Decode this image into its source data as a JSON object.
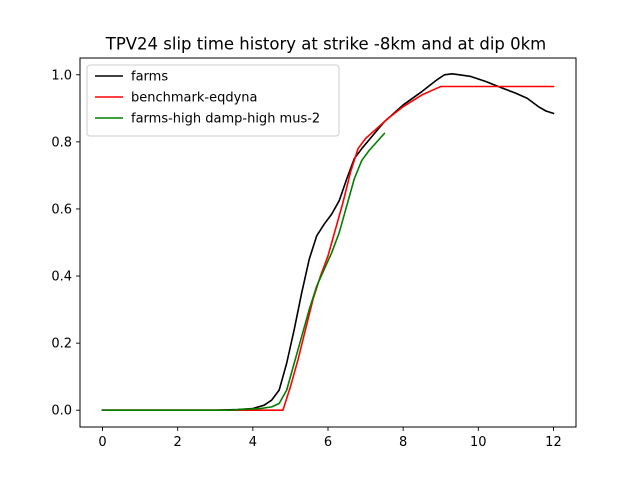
{
  "chart_data": {
    "type": "line",
    "title": "TPV24 slip time history at strike -8km and at dip 0km",
    "xlabel": "",
    "ylabel": "",
    "xlim": [
      -0.6,
      12.6
    ],
    "ylim": [
      -0.05,
      1.05
    ],
    "x_ticks": [
      0,
      2,
      4,
      6,
      8,
      10,
      12
    ],
    "y_ticks": [
      0.0,
      0.2,
      0.4,
      0.6,
      0.8,
      1.0
    ],
    "x_tick_labels": [
      "0",
      "2",
      "4",
      "6",
      "8",
      "10",
      "12"
    ],
    "y_tick_labels": [
      "0.0",
      "0.2",
      "0.4",
      "0.6",
      "0.8",
      "1.0"
    ],
    "grid": false,
    "legend_position": "upper-left",
    "series": [
      {
        "name": "farms",
        "color": "#000000",
        "points": [
          [
            0,
            0
          ],
          [
            3,
            0
          ],
          [
            3.6,
            0.002
          ],
          [
            4.0,
            0.005
          ],
          [
            4.3,
            0.015
          ],
          [
            4.5,
            0.03
          ],
          [
            4.7,
            0.06
          ],
          [
            4.9,
            0.14
          ],
          [
            5.1,
            0.24
          ],
          [
            5.3,
            0.35
          ],
          [
            5.5,
            0.45
          ],
          [
            5.7,
            0.52
          ],
          [
            5.9,
            0.555
          ],
          [
            6.1,
            0.585
          ],
          [
            6.3,
            0.625
          ],
          [
            6.5,
            0.69
          ],
          [
            6.7,
            0.75
          ],
          [
            6.9,
            0.78
          ],
          [
            7.2,
            0.82
          ],
          [
            7.5,
            0.86
          ],
          [
            8.0,
            0.91
          ],
          [
            8.5,
            0.95
          ],
          [
            8.9,
            0.985
          ],
          [
            9.1,
            1.0
          ],
          [
            9.3,
            1.003
          ],
          [
            9.5,
            1.0
          ],
          [
            9.8,
            0.995
          ],
          [
            10.2,
            0.98
          ],
          [
            10.6,
            0.962
          ],
          [
            11.0,
            0.945
          ],
          [
            11.3,
            0.93
          ],
          [
            11.6,
            0.905
          ],
          [
            11.8,
            0.892
          ],
          [
            12.0,
            0.885
          ]
        ]
      },
      {
        "name": "benchmark-eqdyna",
        "color": "#ff0000",
        "points": [
          [
            0,
            0
          ],
          [
            4.8,
            0
          ],
          [
            5.0,
            0.07
          ],
          [
            5.2,
            0.15
          ],
          [
            5.4,
            0.24
          ],
          [
            5.6,
            0.33
          ],
          [
            5.8,
            0.4
          ],
          [
            6.0,
            0.46
          ],
          [
            6.2,
            0.54
          ],
          [
            6.4,
            0.62
          ],
          [
            6.6,
            0.71
          ],
          [
            6.8,
            0.78
          ],
          [
            7.0,
            0.81
          ],
          [
            7.3,
            0.84
          ],
          [
            7.6,
            0.87
          ],
          [
            8.0,
            0.905
          ],
          [
            8.5,
            0.94
          ],
          [
            8.9,
            0.96
          ],
          [
            9.0,
            0.965
          ],
          [
            12.0,
            0.965
          ]
        ]
      },
      {
        "name": "farms-high damp-high mus-2",
        "color": "#008000",
        "points": [
          [
            0,
            0
          ],
          [
            3.4,
            0
          ],
          [
            3.8,
            0.003
          ],
          [
            4.2,
            0.005
          ],
          [
            4.5,
            0.01
          ],
          [
            4.7,
            0.02
          ],
          [
            4.9,
            0.06
          ],
          [
            5.1,
            0.14
          ],
          [
            5.3,
            0.22
          ],
          [
            5.5,
            0.3
          ],
          [
            5.7,
            0.37
          ],
          [
            5.9,
            0.42
          ],
          [
            6.1,
            0.47
          ],
          [
            6.3,
            0.53
          ],
          [
            6.5,
            0.61
          ],
          [
            6.7,
            0.69
          ],
          [
            6.9,
            0.745
          ],
          [
            7.1,
            0.775
          ],
          [
            7.3,
            0.8
          ],
          [
            7.5,
            0.825
          ]
        ]
      }
    ]
  }
}
